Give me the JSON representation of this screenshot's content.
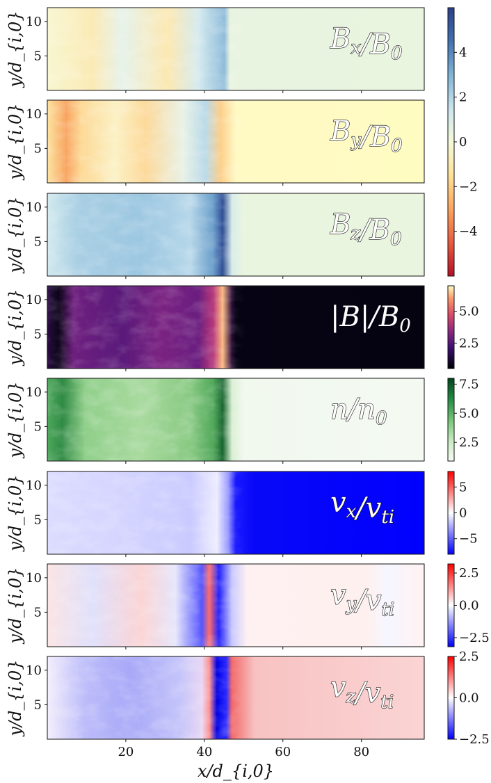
{
  "chart_data": {
    "type": "heatmap",
    "x_axis": {
      "label": "x/d_{i,0}",
      "range": [
        0,
        96
      ],
      "ticks": [
        20,
        40,
        60,
        80
      ]
    },
    "y_axis_label": "y/d_{i,0}",
    "y_range": [
      0,
      12
    ],
    "y_ticks": [
      5,
      10
    ],
    "front_position_x": 40,
    "panels": [
      {
        "quantity": "Bx/B0",
        "label": "B_x/B_0",
        "label_style": "outlined",
        "colormap": "RdYlBu_r",
        "colorbar_shared": "B",
        "downstream_level": 0.6,
        "upstream_level": 0.5
      },
      {
        "quantity": "By/B0",
        "label": "B_y/B_0",
        "label_style": "outlined",
        "colormap": "RdYlBu_r",
        "colorbar_shared": "B",
        "downstream_level": 0.35,
        "upstream_level": 0.47
      },
      {
        "quantity": "Bz/B0",
        "label": "B_z/B_0",
        "label_style": "outlined",
        "colormap": "RdYlBu_r",
        "colorbar_shared": "B",
        "downstream_level": 0.68,
        "upstream_level": 0.52
      },
      {
        "quantity": "|B|/B0",
        "label": "|B|/B_0",
        "label_style": "white",
        "colormap": "magma",
        "colorbar": {
          "ticks": [
            2.5,
            5.0
          ],
          "tick_labels": [
            "2.5",
            "5.0"
          ],
          "range": [
            0.5,
            7.0
          ]
        }
      },
      {
        "quantity": "n/n0",
        "label": "n/n_0",
        "label_style": "outlined",
        "colormap": "Greens",
        "colorbar": {
          "ticks": [
            2.5,
            5.0,
            7.5
          ],
          "tick_labels": [
            "2.5",
            "5.0",
            "7.5"
          ],
          "range": [
            0.9,
            8.0
          ]
        }
      },
      {
        "quantity": "vx/vti",
        "label": "v_x/v_ti",
        "label_style": "outlined",
        "colormap": "bwr",
        "colorbar": {
          "ticks": [
            5,
            0,
            -5
          ],
          "tick_labels": [
            "5",
            "0",
            "−5"
          ],
          "range": [
            -8,
            8
          ]
        }
      },
      {
        "quantity": "vy/vti",
        "label": "v_y/v_ti",
        "label_style": "outlined",
        "colormap": "bwr",
        "colorbar": {
          "ticks": [
            2.5,
            0.0,
            -2.5
          ],
          "tick_labels": [
            "2.5",
            "0.0",
            "−2.5"
          ],
          "range": [
            -3.2,
            3.2
          ]
        }
      },
      {
        "quantity": "vz/vti",
        "label": "v_z/v_ti",
        "label_style": "outlined",
        "colormap": "bwr",
        "colorbar": {
          "ticks": [
            2.5,
            0.0,
            -2.5
          ],
          "tick_labels": [
            "2.5",
            "0.0",
            "−2.5"
          ],
          "range": [
            -2.5,
            2.5
          ]
        }
      }
    ],
    "shared_colorbar_B": {
      "ticks": [
        4,
        2,
        0,
        -2,
        -4
      ],
      "tick_labels": [
        "4",
        "2",
        "0",
        "−2",
        "−4"
      ],
      "range": [
        -6,
        6
      ]
    },
    "colors": {
      "rdylbu_neutral": "#eaf5df",
      "by_upstream": "#fffcc2",
      "magma_dark": "#050310",
      "greens_light": "#f4faf2",
      "bwr_blue": "#0000ff"
    }
  }
}
